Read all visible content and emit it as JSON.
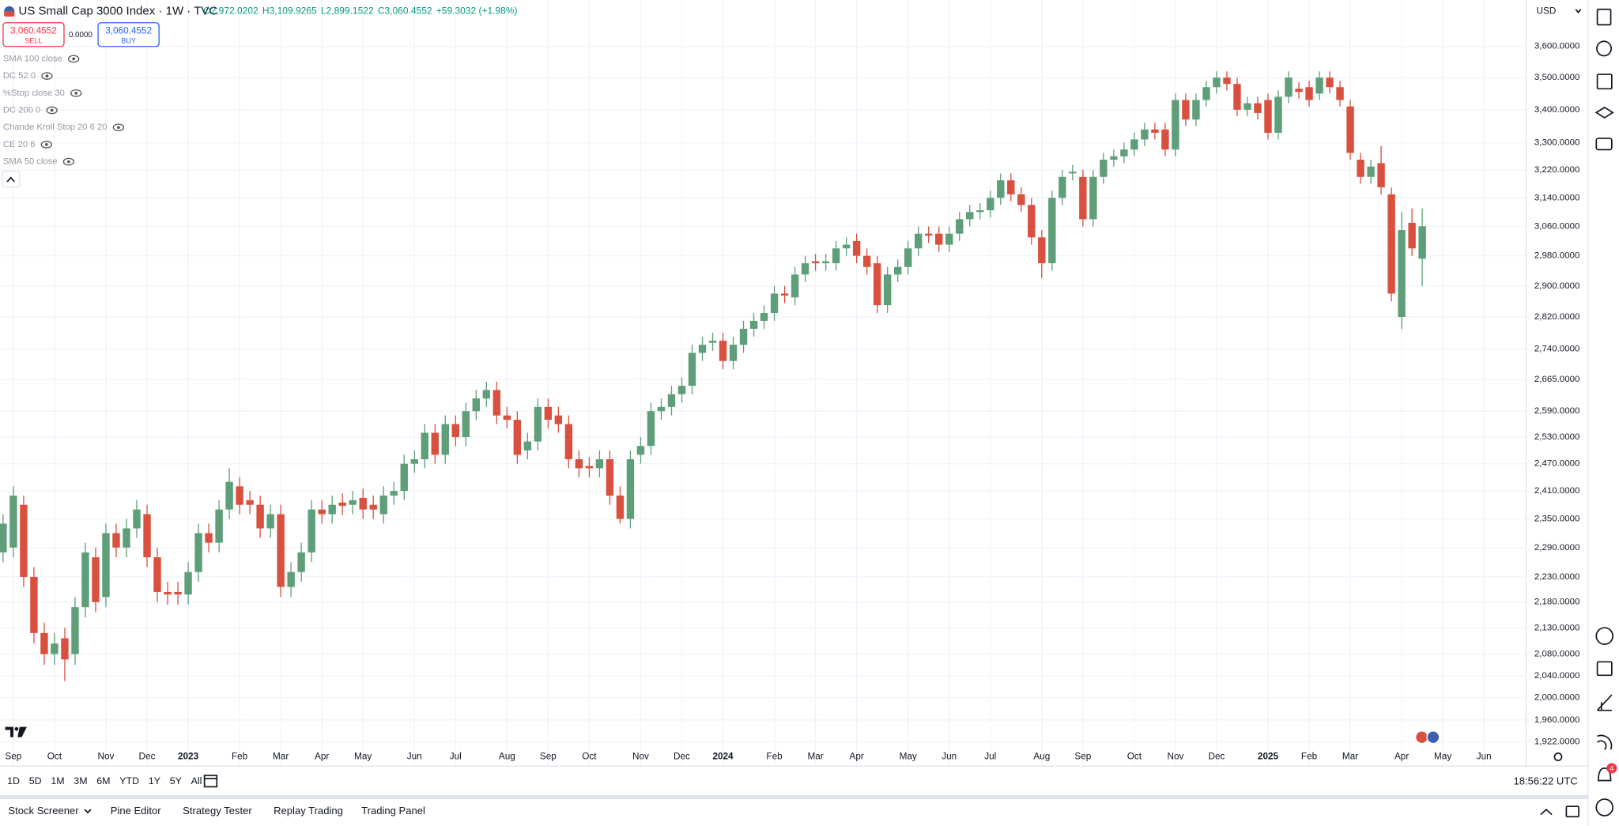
{
  "ui": {
    "title": "US Small Cap 3000 Index · 1W · TVC",
    "ohlc": [
      "O2,972.0202",
      "H3,109.9265",
      "L2,899.1522",
      "C3,060.4552",
      "+59.3032 (+1.98%)"
    ],
    "sell_price": "3,060.4552",
    "sell": "SELL",
    "spread": "0.0000",
    "buy_price": "3,060.4552",
    "buy": "BUY",
    "indicators": [
      "SMA 100 close",
      "DC 52 0",
      "%Stop close 30",
      "DC 200 0",
      "Chande Kroll Stop 20 6 20",
      "CE 20 6",
      "SMA 50 close"
    ],
    "currency": "USD",
    "ranges": [
      "1D",
      "5D",
      "1M",
      "3M",
      "6M",
      "YTD",
      "1Y",
      "5Y",
      "All"
    ],
    "clock": "18:56:22 UTC",
    "tabs": [
      "Stock Screener",
      "Pine Editor",
      "Strategy Tester",
      "Replay Trading",
      "Trading Panel"
    ],
    "badge": "4"
  },
  "chart_data": {
    "type": "candlestick",
    "log_scale": true,
    "grid": true,
    "up_color": "#5e9e79",
    "down_color": "#d9503f",
    "ylim": [
      1910,
      3754
    ],
    "yticks": [
      {
        "value": 3600,
        "label": "3,600.0000"
      },
      {
        "value": 3500,
        "label": "3,500.0000"
      },
      {
        "value": 3400,
        "label": "3,400.0000"
      },
      {
        "value": 3300,
        "label": "3,300.0000"
      },
      {
        "value": 3220,
        "label": "3,220.0000"
      },
      {
        "value": 3140,
        "label": "3,140.0000"
      },
      {
        "value": 3060,
        "label": "3,060.0000"
      },
      {
        "value": 2980,
        "label": "2,980.0000"
      },
      {
        "value": 2900,
        "label": "2,900.0000"
      },
      {
        "value": 2820,
        "label": "2,820.0000"
      },
      {
        "value": 2740,
        "label": "2,740.0000"
      },
      {
        "value": 2665,
        "label": "2,665.0000"
      },
      {
        "value": 2590,
        "label": "2,590.0000"
      },
      {
        "value": 2530,
        "label": "2,530.0000"
      },
      {
        "value": 2470,
        "label": "2,470.0000"
      },
      {
        "value": 2410,
        "label": "2,410.0000"
      },
      {
        "value": 2350,
        "label": "2,350.0000"
      },
      {
        "value": 2290,
        "label": "2,290.0000"
      },
      {
        "value": 2230,
        "label": "2,230.0000"
      },
      {
        "value": 2180,
        "label": "2,180.0000"
      },
      {
        "value": 2130,
        "label": "2,130.0000"
      },
      {
        "value": 2080,
        "label": "2,080.0000"
      },
      {
        "value": 2040,
        "label": "2,040.0000"
      },
      {
        "value": 2000,
        "label": "2,000.0000"
      },
      {
        "value": 1960,
        "label": "1,960.0000"
      },
      {
        "value": 1922,
        "label": "1,922.0000"
      }
    ],
    "categories": [
      null,
      "Sep",
      null,
      null,
      null,
      "Oct",
      null,
      null,
      null,
      null,
      "Nov",
      null,
      null,
      null,
      "Dec",
      null,
      null,
      null,
      "2023",
      null,
      null,
      null,
      null,
      "Feb",
      null,
      null,
      null,
      "Mar",
      null,
      null,
      null,
      "Apr",
      null,
      null,
      null,
      "May",
      null,
      null,
      null,
      null,
      "Jun",
      null,
      null,
      null,
      "Jul",
      null,
      null,
      null,
      null,
      "Aug",
      null,
      null,
      null,
      "Sep",
      null,
      null,
      null,
      "Oct",
      null,
      null,
      null,
      null,
      "Nov",
      null,
      null,
      null,
      "Dec",
      null,
      null,
      null,
      "2024",
      null,
      null,
      null,
      null,
      "Feb",
      null,
      null,
      null,
      "Mar",
      null,
      null,
      null,
      "Apr",
      null,
      null,
      null,
      null,
      "May",
      null,
      null,
      null,
      "Jun",
      null,
      null,
      null,
      "Jul",
      null,
      null,
      null,
      null,
      "Aug",
      null,
      null,
      null,
      "Sep",
      null,
      null,
      null,
      null,
      "Oct",
      null,
      null,
      null,
      "Nov",
      null,
      null,
      null,
      "Dec",
      null,
      null,
      null,
      null,
      "2025",
      null,
      null,
      null,
      "Feb",
      null,
      null,
      null,
      "Mar",
      null,
      null,
      null,
      null,
      "Apr",
      null,
      null,
      null,
      "May",
      null,
      null,
      null,
      "Jun"
    ],
    "open": [
      2280,
      2290,
      2380,
      2230,
      2120,
      2080,
      2110,
      2080,
      2170,
      2270,
      2190,
      2320,
      2290,
      2330,
      2360,
      2270,
      2200,
      2200,
      2195,
      2240,
      2320,
      2300,
      2370,
      2420,
      2390,
      2380,
      2330,
      2360,
      2210,
      2240,
      2280,
      2370,
      2360,
      2385,
      2380,
      2395,
      2380,
      2360,
      2400,
      2410,
      2470,
      2480,
      2540,
      2490,
      2560,
      2530,
      2590,
      2620,
      2640,
      2580,
      2570,
      2500,
      2520,
      2600,
      2580,
      2560,
      2480,
      2465,
      2460,
      2480,
      2400,
      2350,
      2490,
      2510,
      2590,
      2600,
      2630,
      2650,
      2730,
      2755,
      2760,
      2710,
      2750,
      2790,
      2810,
      2830,
      2880,
      2870,
      2930,
      2965,
      2960,
      2960,
      3000,
      3020,
      2980,
      2960,
      2850,
      2930,
      2950,
      3000,
      3040,
      3040,
      3010,
      3040,
      3080,
      3100,
      3105,
      3140,
      3190,
      3150,
      3120,
      3030,
      2960,
      3140,
      3210,
      3200,
      3080,
      3200,
      3250,
      3260,
      3280,
      3310,
      3340,
      3340,
      3280,
      3430,
      3370,
      3430,
      3470,
      3500,
      3480,
      3400,
      3420,
      3430,
      3330,
      3440,
      3465,
      3470,
      3450,
      3500,
      3470,
      3410,
      3250,
      3200,
      3240,
      3150,
      2820,
      3070,
      2972.0202,
      null,
      null,
      null,
      null,
      null,
      null
    ],
    "high": [
      2360,
      2420,
      2400,
      2250,
      2140,
      2120,
      2130,
      2190,
      2300,
      2290,
      2340,
      2340,
      2350,
      2390,
      2380,
      2290,
      2220,
      2220,
      2260,
      2340,
      2340,
      2390,
      2460,
      2440,
      2410,
      2400,
      2380,
      2380,
      2260,
      2300,
      2390,
      2390,
      2400,
      2405,
      2410,
      2415,
      2400,
      2420,
      2430,
      2490,
      2500,
      2560,
      2560,
      2580,
      2580,
      2610,
      2640,
      2660,
      2660,
      2600,
      2590,
      2540,
      2620,
      2620,
      2600,
      2580,
      2500,
      2485,
      2500,
      2500,
      2420,
      2500,
      2530,
      2610,
      2620,
      2650,
      2670,
      2750,
      2770,
      2780,
      2780,
      2770,
      2810,
      2830,
      2850,
      2900,
      2900,
      2950,
      2980,
      2985,
      2985,
      3020,
      3030,
      3040,
      3000,
      2980,
      2950,
      2970,
      3020,
      3060,
      3060,
      3060,
      3060,
      3100,
      3120,
      3125,
      3160,
      3210,
      3210,
      3170,
      3140,
      3050,
      3160,
      3220,
      3235,
      3220,
      3220,
      3270,
      3280,
      3300,
      3330,
      3360,
      3360,
      3360,
      3450,
      3450,
      3450,
      3490,
      3520,
      3520,
      3500,
      3440,
      3440,
      3450,
      3460,
      3520,
      3485,
      3490,
      3520,
      3520,
      3490,
      3430,
      3270,
      3250,
      3290,
      3170,
      3100,
      3110,
      3109.9265,
      null,
      null,
      null,
      null,
      null,
      null
    ],
    "low": [
      2260,
      2270,
      2210,
      2100,
      2060,
      2060,
      2030,
      2060,
      2150,
      2160,
      2170,
      2270,
      2270,
      2310,
      2250,
      2180,
      2175,
      2175,
      2175,
      2220,
      2280,
      2280,
      2350,
      2360,
      2360,
      2310,
      2310,
      2190,
      2190,
      2220,
      2260,
      2340,
      2340,
      2358,
      2360,
      2350,
      2350,
      2340,
      2380,
      2390,
      2450,
      2460,
      2470,
      2470,
      2510,
      2510,
      2570,
      2600,
      2560,
      2550,
      2470,
      2480,
      2500,
      2550,
      2540,
      2460,
      2440,
      2440,
      2440,
      2380,
      2340,
      2330,
      2470,
      2490,
      2570,
      2580,
      2610,
      2630,
      2710,
      2735,
      2690,
      2690,
      2730,
      2770,
      2790,
      2810,
      2855,
      2850,
      2910,
      2940,
      2940,
      2940,
      2980,
      2960,
      2930,
      2830,
      2830,
      2910,
      2930,
      2980,
      3015,
      2990,
      2990,
      3020,
      3060,
      3080,
      3085,
      3120,
      3130,
      3100,
      3010,
      2920,
      2940,
      3120,
      3190,
      3060,
      3060,
      3180,
      3230,
      3240,
      3260,
      3290,
      3310,
      3260,
      3260,
      3350,
      3350,
      3410,
      3450,
      3460,
      3380,
      3380,
      3370,
      3310,
      3310,
      3420,
      3435,
      3410,
      3430,
      3450,
      3410,
      3250,
      3180,
      3180,
      3150,
      2860,
      2790,
      2980,
      2899.1522,
      null,
      null,
      null,
      null,
      null,
      null
    ],
    "close": [
      2340,
      2400,
      2230,
      2120,
      2080,
      2100,
      2070,
      2170,
      2280,
      2180,
      2320,
      2290,
      2330,
      2370,
      2270,
      2200,
      2195,
      2195,
      2240,
      2320,
      2300,
      2370,
      2430,
      2380,
      2380,
      2330,
      2360,
      2210,
      2240,
      2280,
      2370,
      2360,
      2380,
      2378,
      2390,
      2370,
      2370,
      2400,
      2410,
      2470,
      2480,
      2540,
      2490,
      2560,
      2530,
      2590,
      2620,
      2640,
      2580,
      2570,
      2490,
      2520,
      2600,
      2570,
      2560,
      2480,
      2460,
      2460,
      2480,
      2400,
      2350,
      2480,
      2510,
      2590,
      2600,
      2630,
      2650,
      2730,
      2750,
      2760,
      2710,
      2750,
      2790,
      2810,
      2830,
      2880,
      2875,
      2930,
      2960,
      2960,
      2965,
      3000,
      3010,
      2980,
      2950,
      2850,
      2930,
      2950,
      3000,
      3040,
      3035,
      3010,
      3040,
      3080,
      3100,
      3105,
      3140,
      3190,
      3150,
      3120,
      3030,
      2960,
      3140,
      3200,
      3215,
      3080,
      3200,
      3250,
      3260,
      3280,
      3310,
      3340,
      3330,
      3280,
      3430,
      3370,
      3430,
      3470,
      3500,
      3480,
      3400,
      3420,
      3390,
      3330,
      3440,
      3500,
      3455,
      3430,
      3500,
      3470,
      3430,
      3270,
      3200,
      3230,
      3170,
      2880,
      3050,
      3000,
      3060.4552,
      null,
      null,
      null,
      null,
      null,
      null
    ]
  }
}
